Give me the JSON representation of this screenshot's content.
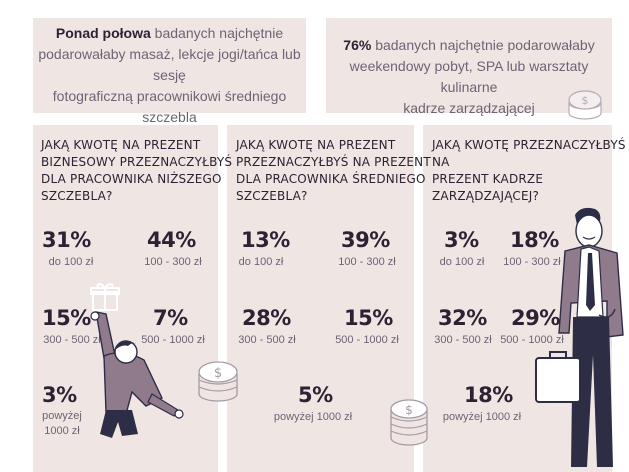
{
  "top_left": {
    "bold": "Ponad połowa",
    "line1_rest": " badanych najchętnie",
    "line2": "podarowałaby masaż, lekcje jogi/tańca lub sesję",
    "line3": "fotograficzną pracownikowi średniego szczebla"
  },
  "top_right": {
    "bold": "76%",
    "line1_rest": " badanych najchętnie podarowałaby",
    "line2": "weekendowy pobyt, SPA lub warsztaty kulinarne",
    "line3": "kadrze zarządzającej"
  },
  "panels": [
    {
      "question": [
        "JAKĄ KWOTĘ NA PREZENT",
        "BIZNESOWY PRZEZNACZYŁBYŚ",
        "DLA PRACOWNIKA NIŻSZEGO",
        "SZCZEBLA?"
      ],
      "items": [
        {
          "pct": "31%",
          "label": "do 100 zł"
        },
        {
          "pct": "44%",
          "label": "100 - 300 zł"
        },
        {
          "pct": "15%",
          "label": "300 - 500 zł"
        },
        {
          "pct": "7%",
          "label": "500 - 1000 zł"
        },
        {
          "pct": "3%",
          "label": "powyżej",
          "label2": "1000 zł"
        }
      ]
    },
    {
      "question": [
        "JAKĄ KWOTĘ NA PREZENT",
        "PRZEZNACZYŁBYŚ NA PREZENT",
        "DLA PRACOWNIKA ŚREDNIEGO",
        "SZCZEBLA?"
      ],
      "items": [
        {
          "pct": "13%",
          "label": "do 100 zł"
        },
        {
          "pct": "39%",
          "label": "100 - 300 zł"
        },
        {
          "pct": "28%",
          "label": "300 - 500 zł"
        },
        {
          "pct": "15%",
          "label": "500 - 1000 zł"
        },
        {
          "pct": "5%",
          "label": "powyżej 1000 zł"
        }
      ]
    },
    {
      "question": [
        "JAKĄ KWOTĘ PRZEZNACZYŁBYŚ NA",
        "PREZENT KADRZE",
        "ZARZĄDZAJĄCEJ?"
      ],
      "items": [
        {
          "pct": "3%",
          "label": "do 100 zł"
        },
        {
          "pct": "18%",
          "label": "100 - 300 zł"
        },
        {
          "pct": "32%",
          "label": "300 - 500 zł"
        },
        {
          "pct": "29%",
          "label": "500 - 1000 zł"
        },
        {
          "pct": "18%",
          "label": "powyżej 1000 zł"
        }
      ]
    }
  ],
  "colors": {
    "panel_bg": "#efe6e4",
    "text_dark": "#2b2233",
    "text_muted": "#6c6474",
    "accent_purple": "#8f7b8c",
    "navy": "#2d2d45"
  },
  "icons": [
    "coin-stack-icon",
    "gift-icon",
    "briefcase-icon",
    "person-illustration",
    "businessman-illustration"
  ]
}
